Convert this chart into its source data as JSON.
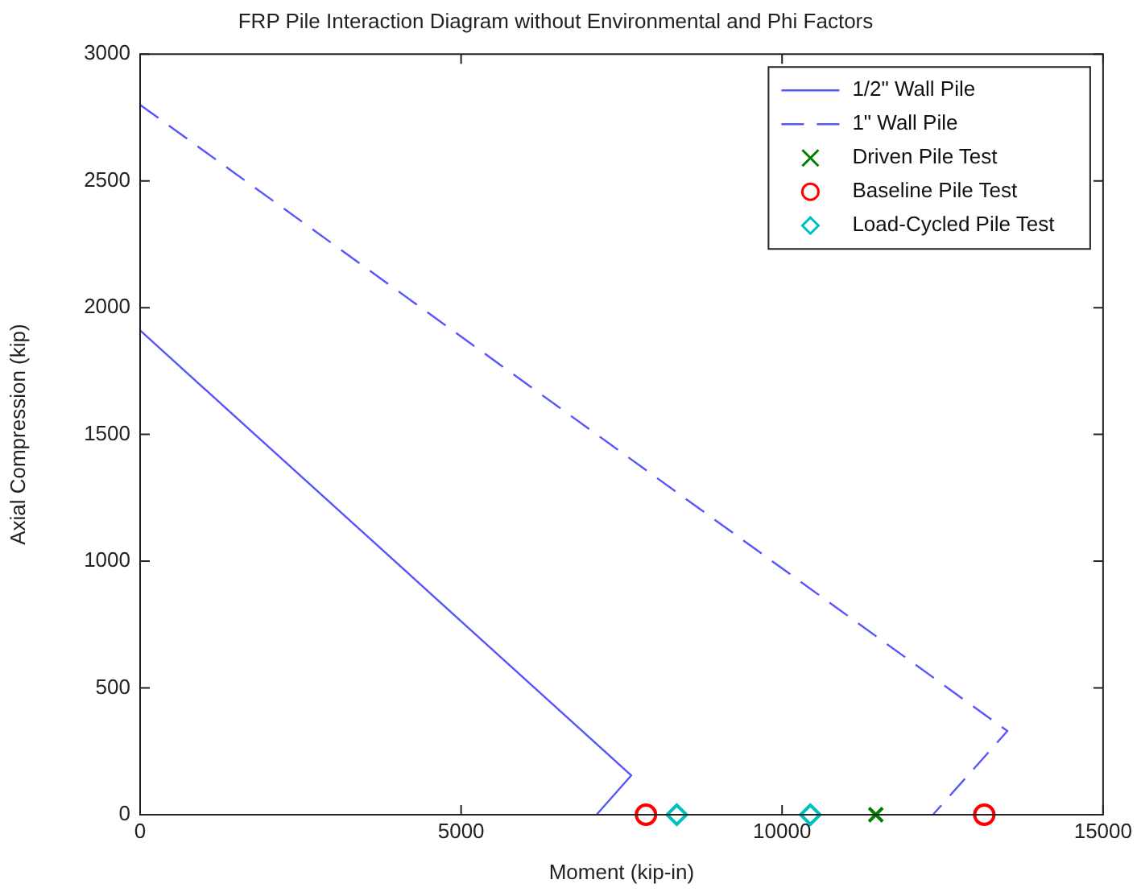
{
  "chart_data": {
    "type": "line",
    "title": "FRP Pile Interaction Diagram without Environmental and Phi Factors",
    "xlabel": "Moment (kip-in)",
    "ylabel": "Axial Compression (kip)",
    "xlim": [
      0,
      15000
    ],
    "xticks": [
      0,
      5000,
      10000,
      15000
    ],
    "ylim": [
      0,
      3000
    ],
    "yticks": [
      0,
      500,
      1000,
      1500,
      2000,
      2500,
      3000
    ],
    "grid": false,
    "legend": "top right",
    "series": [
      {
        "name": "1/2\" Wall Pile",
        "color": "#5555ff",
        "line_style": "solid",
        "marker": "none",
        "x": [
          0,
          7650,
          7110
        ],
        "values": [
          1910,
          155,
          0
        ]
      },
      {
        "name": "1\" Wall Pile",
        "color": "#5555ff",
        "line_style": "dashed",
        "marker": "none",
        "x": [
          0,
          13510,
          12350
        ],
        "values": [
          2800,
          330,
          0
        ]
      },
      {
        "name": "Driven Pile Test",
        "type": "scatter",
        "color": "#008000",
        "marker": "cross",
        "x": [
          11460
        ],
        "values": [
          0
        ]
      },
      {
        "name": "Baseline Pile Test",
        "type": "scatter",
        "color": "#ff0000",
        "marker": "circle",
        "x": [
          7880,
          13150
        ],
        "values": [
          0,
          0
        ]
      },
      {
        "name": "Load-Cycled Pile Test",
        "type": "scatter",
        "color": "#00bfbf",
        "marker": "diamond",
        "x": [
          8360,
          10440
        ],
        "values": [
          0,
          0
        ]
      }
    ]
  }
}
